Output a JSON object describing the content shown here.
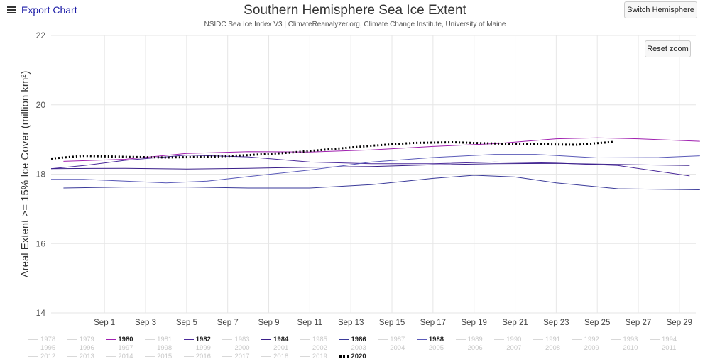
{
  "header": {
    "export_label": "Export Chart",
    "switch_label": "Switch Hemisphere",
    "reset_label": "Reset zoom"
  },
  "chart_data": {
    "type": "line",
    "title": "Southern Hemisphere Sea Ice Extent",
    "subtitle": "NSIDC Sea Ice Index V3 | ClimateReanalyzer.org, Climate Change Institute, University of Maine",
    "ylabel": "Areal Extent >= 15% Ice Cover (million km²)",
    "xlabel": "",
    "ylim": [
      14,
      22
    ],
    "yticks": [
      14,
      16,
      18,
      20,
      22
    ],
    "xlim": [
      29.4,
      60.8
    ],
    "x_ticks": [
      {
        "x": 32,
        "label": "Sep 1"
      },
      {
        "x": 34,
        "label": "Sep 3"
      },
      {
        "x": 36,
        "label": "Sep 5"
      },
      {
        "x": 38,
        "label": "Sep 7"
      },
      {
        "x": 40,
        "label": "Sep 9"
      },
      {
        "x": 42,
        "label": "Sep 11"
      },
      {
        "x": 44,
        "label": "Sep 13"
      },
      {
        "x": 46,
        "label": "Sep 15"
      },
      {
        "x": 48,
        "label": "Sep 17"
      },
      {
        "x": 50,
        "label": "Sep 19"
      },
      {
        "x": 52,
        "label": "Sep 21"
      },
      {
        "x": 54,
        "label": "Sep 23"
      },
      {
        "x": 56,
        "label": "Sep 25"
      },
      {
        "x": 58,
        "label": "Sep 27"
      },
      {
        "x": 60,
        "label": "Sep 29"
      }
    ],
    "grid": true,
    "legend_position": "bottom",
    "series": [
      {
        "name": "1980",
        "color": "#a020b0",
        "dash": "none",
        "width": 1,
        "x": [
          30,
          33,
          36,
          39,
          42,
          45,
          48,
          51,
          54,
          56,
          58,
          61
        ],
        "y": [
          18.37,
          18.43,
          18.6,
          18.65,
          18.64,
          18.7,
          18.8,
          18.88,
          19.02,
          19.05,
          19.02,
          18.95
        ]
      },
      {
        "name": "1982",
        "color": "#4b2a9a",
        "dash": "none",
        "width": 1,
        "x": [
          29.4,
          31,
          33,
          36,
          39,
          42,
          45,
          48,
          51,
          54,
          57,
          60.5
        ],
        "y": [
          18.16,
          18.25,
          18.4,
          18.55,
          18.5,
          18.35,
          18.3,
          18.3,
          18.35,
          18.32,
          18.25,
          17.95
        ]
      },
      {
        "name": "1984",
        "color": "#3a1f8a",
        "dash": "none",
        "width": 1,
        "x": [
          29.4,
          33,
          36,
          39,
          42,
          45,
          48,
          51,
          54,
          57,
          60.5
        ],
        "y": [
          18.16,
          18.17,
          18.15,
          18.17,
          18.2,
          18.22,
          18.27,
          18.3,
          18.31,
          18.28,
          18.25
        ]
      },
      {
        "name": "1986",
        "color": "#3a3a99",
        "dash": "none",
        "width": 1,
        "x": [
          30,
          33,
          36,
          39,
          42,
          45,
          48,
          50,
          52,
          54,
          57,
          61
        ],
        "y": [
          17.6,
          17.63,
          17.63,
          17.6,
          17.6,
          17.7,
          17.88,
          17.97,
          17.92,
          17.75,
          17.58,
          17.55
        ]
      },
      {
        "name": "1988",
        "color": "#5a5ab8",
        "dash": "none",
        "width": 1,
        "x": [
          29.4,
          31,
          33,
          35,
          37,
          39,
          42,
          45,
          48,
          51,
          53,
          56,
          59,
          61
        ],
        "y": [
          17.85,
          17.85,
          17.8,
          17.75,
          17.8,
          17.93,
          18.12,
          18.35,
          18.48,
          18.57,
          18.57,
          18.47,
          18.48,
          18.53
        ]
      },
      {
        "name": "2020",
        "color": "#000000",
        "dash": "2,3",
        "width": 3,
        "x": [
          29.4,
          31,
          33,
          35,
          37,
          39,
          41,
          43,
          45,
          47,
          49,
          50,
          52,
          55,
          56.8
        ],
        "y": [
          18.45,
          18.53,
          18.5,
          18.48,
          18.5,
          18.55,
          18.62,
          18.72,
          18.82,
          18.9,
          18.92,
          18.9,
          18.87,
          18.85,
          18.93
        ]
      }
    ],
    "legend_items": [
      "1978",
      "1979",
      "1980",
      "1981",
      "1982",
      "1983",
      "1984",
      "1985",
      "1986",
      "1987",
      "1988",
      "1989",
      "1990",
      "1991",
      "1992",
      "1993",
      "1994",
      "1995",
      "1996",
      "1997",
      "1998",
      "1999",
      "2000",
      "2001",
      "2002",
      "2003",
      "2004",
      "2005",
      "2006",
      "2007",
      "2008",
      "2009",
      "2010",
      "2011",
      "2012",
      "2013",
      "2014",
      "2015",
      "2016",
      "2017",
      "2018",
      "2019",
      "2020"
    ],
    "legend_active": [
      "1980",
      "1982",
      "1984",
      "1986",
      "1988",
      "2020"
    ]
  }
}
